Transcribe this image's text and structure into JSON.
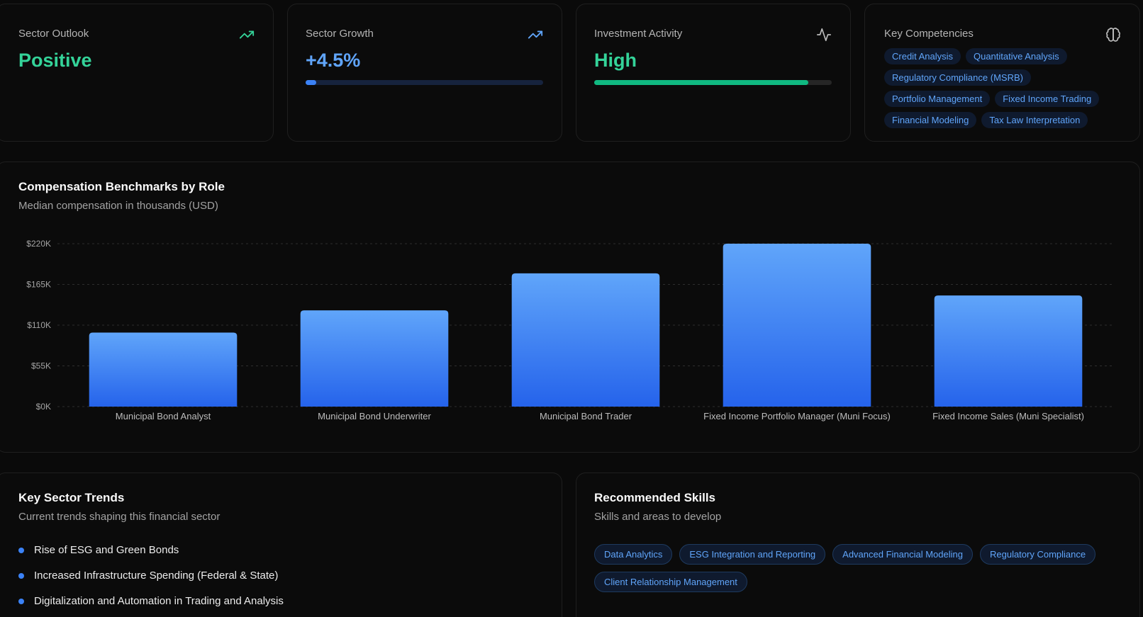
{
  "stats": [
    {
      "label": "Sector Outlook",
      "value": "Positive",
      "icon": "trending-up-icon",
      "color": "#34d399"
    },
    {
      "label": "Sector Growth",
      "value": "+4.5%",
      "icon": "trending-up-icon",
      "color": "#60a5fa",
      "progress_percent": 4.5
    },
    {
      "label": "Investment Activity",
      "value": "High",
      "icon": "activity-icon",
      "color": "#34d399",
      "progress_percent": 90
    }
  ],
  "competencies": {
    "label": "Key Competencies",
    "icon": "brain-icon",
    "items": [
      "Credit Analysis",
      "Quantitative Analysis",
      "Regulatory Compliance (MSRB)",
      "Portfolio Management",
      "Fixed Income Trading",
      "Financial Modeling",
      "Tax Law Interpretation"
    ]
  },
  "compensation": {
    "title": "Compensation Benchmarks by Role",
    "subtitle": "Median compensation in thousands (USD)"
  },
  "chart_data": {
    "type": "bar",
    "categories": [
      "Municipal Bond Analyst",
      "Municipal Bond Underwriter",
      "Municipal Bond Trader",
      "Fixed Income Portfolio Manager (Muni Focus)",
      "Fixed Income Sales (Muni Specialist)"
    ],
    "values": [
      100,
      130,
      180,
      220,
      150
    ],
    "yticks": [
      "$0K",
      "$55K",
      "$110K",
      "$165K",
      "$220K"
    ],
    "ylim": [
      0,
      220
    ],
    "grid": true,
    "bar_color_top": "#60a5fa",
    "bar_color_bottom": "#2563eb"
  },
  "trends": {
    "title": "Key Sector Trends",
    "subtitle": "Current trends shaping this financial sector",
    "items": [
      "Rise of ESG and Green Bonds",
      "Increased Infrastructure Spending (Federal & State)",
      "Digitalization and Automation in Trading and Analysis"
    ]
  },
  "skills": {
    "title": "Recommended Skills",
    "subtitle": "Skills and areas to develop",
    "items": [
      "Data Analytics",
      "ESG Integration and Reporting",
      "Advanced Financial Modeling",
      "Regulatory Compliance",
      "Client Relationship Management"
    ]
  }
}
